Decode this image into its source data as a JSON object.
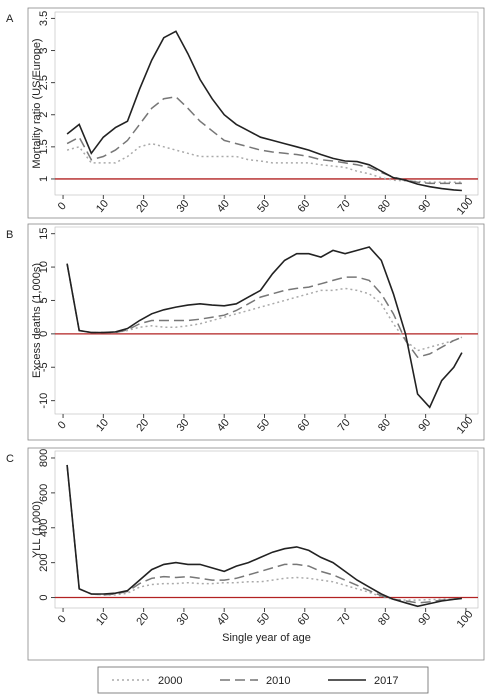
{
  "chart_data": [
    {
      "type": "line",
      "label": "A",
      "ylabel": "Mortality ratio (US/Europe)",
      "x": [
        1,
        4,
        7,
        10,
        13,
        16,
        19,
        22,
        25,
        28,
        31,
        34,
        37,
        40,
        43,
        46,
        49,
        52,
        55,
        58,
        61,
        64,
        67,
        70,
        73,
        76,
        79,
        82,
        85,
        88,
        91,
        94,
        97,
        99
      ],
      "xlim": [
        -2,
        103
      ],
      "xticks": [
        0,
        10,
        20,
        30,
        40,
        50,
        60,
        70,
        80,
        90,
        100
      ],
      "ylim": [
        0.75,
        3.6
      ],
      "yticks": [
        1,
        1.5,
        2,
        2.5,
        3,
        3.5
      ],
      "reference_line": 1,
      "reference_color": "#b22222",
      "series": [
        {
          "name": "2000",
          "color": "#aaaaaa",
          "style": "dotted",
          "values": [
            1.45,
            1.5,
            1.25,
            1.25,
            1.25,
            1.35,
            1.5,
            1.55,
            1.5,
            1.45,
            1.4,
            1.35,
            1.35,
            1.35,
            1.35,
            1.3,
            1.28,
            1.25,
            1.25,
            1.25,
            1.25,
            1.22,
            1.2,
            1.18,
            1.12,
            1.08,
            1.02,
            0.98,
            0.97,
            0.96,
            0.95,
            0.95,
            0.95,
            0.95
          ]
        },
        {
          "name": "2010",
          "color": "#777777",
          "style": "dashed",
          "values": [
            1.55,
            1.65,
            1.3,
            1.35,
            1.45,
            1.6,
            1.85,
            2.1,
            2.25,
            2.28,
            2.1,
            1.9,
            1.75,
            1.6,
            1.55,
            1.5,
            1.45,
            1.42,
            1.4,
            1.38,
            1.35,
            1.3,
            1.28,
            1.25,
            1.22,
            1.18,
            1.1,
            1.03,
            0.98,
            0.95,
            0.93,
            0.93,
            0.93,
            0.93
          ]
        },
        {
          "name": "2017",
          "color": "#222222",
          "style": "solid",
          "values": [
            1.7,
            1.85,
            1.4,
            1.65,
            1.8,
            1.9,
            2.4,
            2.85,
            3.2,
            3.3,
            2.95,
            2.55,
            2.25,
            2.0,
            1.85,
            1.75,
            1.65,
            1.6,
            1.55,
            1.5,
            1.45,
            1.38,
            1.32,
            1.28,
            1.27,
            1.22,
            1.12,
            1.02,
            0.98,
            0.92,
            0.88,
            0.85,
            0.83,
            0.82
          ]
        }
      ]
    },
    {
      "type": "line",
      "label": "B",
      "ylabel": "Excess deaths (1,000s)",
      "x": [
        1,
        4,
        7,
        10,
        13,
        16,
        19,
        22,
        25,
        28,
        31,
        34,
        37,
        40,
        43,
        46,
        49,
        52,
        55,
        58,
        61,
        64,
        67,
        70,
        73,
        76,
        79,
        82,
        85,
        88,
        91,
        94,
        97,
        99
      ],
      "xlim": [
        -2,
        103
      ],
      "xticks": [
        0,
        10,
        20,
        30,
        40,
        50,
        60,
        70,
        80,
        90,
        100
      ],
      "ylim": [
        -12,
        16
      ],
      "yticks": [
        -10,
        -5,
        0,
        5,
        10,
        15
      ],
      "reference_line": 0,
      "reference_color": "#b22222",
      "series": [
        {
          "name": "2000",
          "color": "#aaaaaa",
          "style": "dotted",
          "values": [
            10.5,
            0.5,
            0.2,
            0.2,
            0.2,
            0.5,
            1,
            1.2,
            1,
            1,
            1.2,
            1.5,
            2,
            2.5,
            3,
            3.5,
            4,
            4.5,
            5,
            5.5,
            6,
            6.5,
            6.5,
            6.8,
            6.5,
            6,
            4.5,
            1.5,
            -1,
            -2.5,
            -2,
            -1.5,
            -1,
            -0.5
          ]
        },
        {
          "name": "2010",
          "color": "#777777",
          "style": "dashed",
          "values": [
            10.5,
            0.5,
            0.2,
            0.2,
            0.2,
            0.6,
            1.5,
            2,
            2,
            2,
            2,
            2.2,
            2.5,
            2.8,
            3.5,
            4.5,
            5.5,
            6,
            6.5,
            6.8,
            7,
            7.5,
            8,
            8.5,
            8.5,
            8,
            6,
            3,
            -1,
            -3.5,
            -3,
            -2,
            -1,
            -0.5
          ]
        },
        {
          "name": "2017",
          "color": "#222222",
          "style": "solid",
          "values": [
            10.5,
            0.5,
            0.2,
            0.2,
            0.3,
            0.8,
            2,
            3,
            3.6,
            4,
            4.3,
            4.5,
            4.3,
            4.2,
            4.5,
            5.5,
            6.5,
            9,
            11,
            12,
            12,
            11.5,
            12.5,
            12,
            12.5,
            13,
            11,
            6,
            0,
            -9,
            -11,
            -7,
            -5,
            -2.8
          ]
        }
      ]
    },
    {
      "type": "line",
      "label": "C",
      "ylabel": "YLL (1,000)",
      "xlabel": "Single year of age",
      "x": [
        1,
        4,
        7,
        10,
        13,
        16,
        19,
        22,
        25,
        28,
        31,
        34,
        37,
        40,
        43,
        46,
        49,
        52,
        55,
        58,
        61,
        64,
        67,
        70,
        73,
        76,
        79,
        82,
        85,
        88,
        91,
        94,
        97,
        99
      ],
      "xlim": [
        -2,
        103
      ],
      "xticks": [
        0,
        10,
        20,
        30,
        40,
        50,
        60,
        70,
        80,
        90,
        100
      ],
      "ylim": [
        -60,
        840
      ],
      "yticks": [
        0,
        200,
        400,
        600,
        800
      ],
      "reference_line": 0,
      "reference_color": "#b22222",
      "series": [
        {
          "name": "2000",
          "color": "#aaaaaa",
          "style": "dotted",
          "values": [
            760,
            50,
            20,
            15,
            15,
            25,
            60,
            75,
            80,
            80,
            85,
            80,
            80,
            85,
            85,
            90,
            90,
            100,
            110,
            115,
            110,
            100,
            90,
            70,
            50,
            30,
            5,
            -10,
            -15,
            -15,
            -12,
            -10,
            -8,
            -5
          ]
        },
        {
          "name": "2010",
          "color": "#777777",
          "style": "dashed",
          "values": [
            760,
            50,
            20,
            15,
            20,
            35,
            80,
            110,
            120,
            115,
            120,
            110,
            100,
            100,
            110,
            130,
            150,
            170,
            190,
            190,
            180,
            150,
            130,
            100,
            70,
            40,
            10,
            -10,
            -20,
            -30,
            -25,
            -15,
            -10,
            -5
          ]
        },
        {
          "name": "2017",
          "color": "#222222",
          "style": "solid",
          "values": [
            760,
            50,
            20,
            20,
            25,
            40,
            100,
            160,
            190,
            200,
            190,
            190,
            170,
            150,
            180,
            200,
            230,
            260,
            280,
            290,
            270,
            230,
            200,
            150,
            100,
            60,
            20,
            -10,
            -30,
            -50,
            -35,
            -20,
            -10,
            -5
          ]
        }
      ]
    }
  ]
}
